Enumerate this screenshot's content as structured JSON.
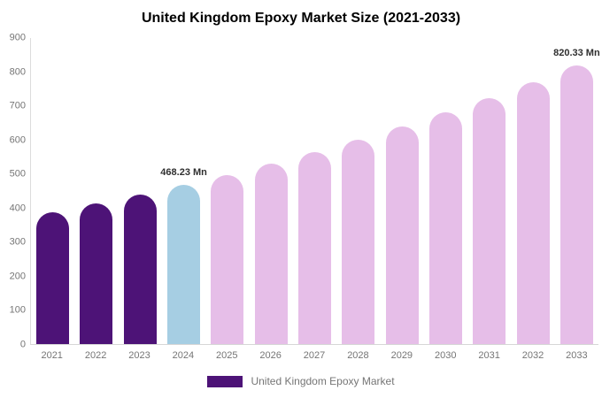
{
  "title": "United Kingdom Epoxy Market Size (2021-2033)",
  "legend": {
    "label": "United Kingdom Epoxy Market",
    "swatch_color": "#4D1377"
  },
  "colors": {
    "historical_bar": "#4D1377",
    "highlight_bar": "#A6CEE3",
    "forecast_bar": "#E6BEE8",
    "axis_line": "#d6d6d6",
    "tick_text": "#757575",
    "title_text": "#000000",
    "annotation_text": "#2f2f2f"
  },
  "chart_data": {
    "type": "bar",
    "title": "United Kingdom Epoxy Market Size (2021-2033)",
    "xlabel": "",
    "ylabel": "",
    "unit": "Mn",
    "ylim": [
      0,
      900
    ],
    "yticks": [
      0,
      100,
      200,
      300,
      400,
      500,
      600,
      700,
      800,
      900
    ],
    "grid": false,
    "legend_position": "bottom",
    "categories": [
      "2021",
      "2022",
      "2023",
      "2024",
      "2025",
      "2026",
      "2027",
      "2028",
      "2029",
      "2030",
      "2031",
      "2032",
      "2033"
    ],
    "series": [
      {
        "name": "United Kingdom Epoxy Market",
        "values": [
          388,
          413,
          440,
          468.23,
          498,
          530,
          565,
          601,
          639,
          681,
          724,
          771,
          820.33
        ]
      }
    ],
    "bar_colors": [
      "#4D1377",
      "#4D1377",
      "#4D1377",
      "#A6CEE3",
      "#E6BEE8",
      "#E6BEE8",
      "#E6BEE8",
      "#E6BEE8",
      "#E6BEE8",
      "#E6BEE8",
      "#E6BEE8",
      "#E6BEE8",
      "#E6BEE8"
    ],
    "annotations": [
      {
        "category": "2024",
        "text": "468.23 Mn"
      },
      {
        "category": "2033",
        "text": "820.33 Mn"
      }
    ]
  }
}
